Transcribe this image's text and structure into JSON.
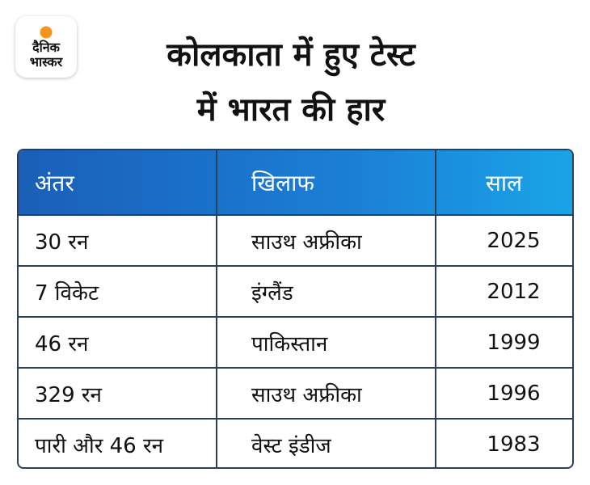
{
  "logo": {
    "line1": "दैनिक",
    "line2": "भास्कर",
    "sun_color": "#f7941d"
  },
  "title": {
    "line1": "कोलकाता में हुए टेस्ट",
    "line2": "में भारत की हार"
  },
  "colors": {
    "header_start": "#1a5fb8",
    "header_end": "#1aa4e6",
    "border": "#2a3f5a"
  },
  "table": {
    "headers": {
      "margin": "अंतर",
      "against": "खिलाफ",
      "year": "साल"
    },
    "rows": [
      {
        "margin": "30 रन",
        "against": "साउथ अफ्रीका",
        "year": "2025"
      },
      {
        "margin": "7 विकेट",
        "against": "इंग्लैंड",
        "year": "2012"
      },
      {
        "margin": "46 रन",
        "against": "पाकिस्तान",
        "year": "1999"
      },
      {
        "margin": "329 रन",
        "against": "साउथ अफ्रीका",
        "year": "1996"
      },
      {
        "margin": "पारी और 46 रन",
        "against": "वेस्ट इंडीज",
        "year": "1983"
      }
    ]
  }
}
